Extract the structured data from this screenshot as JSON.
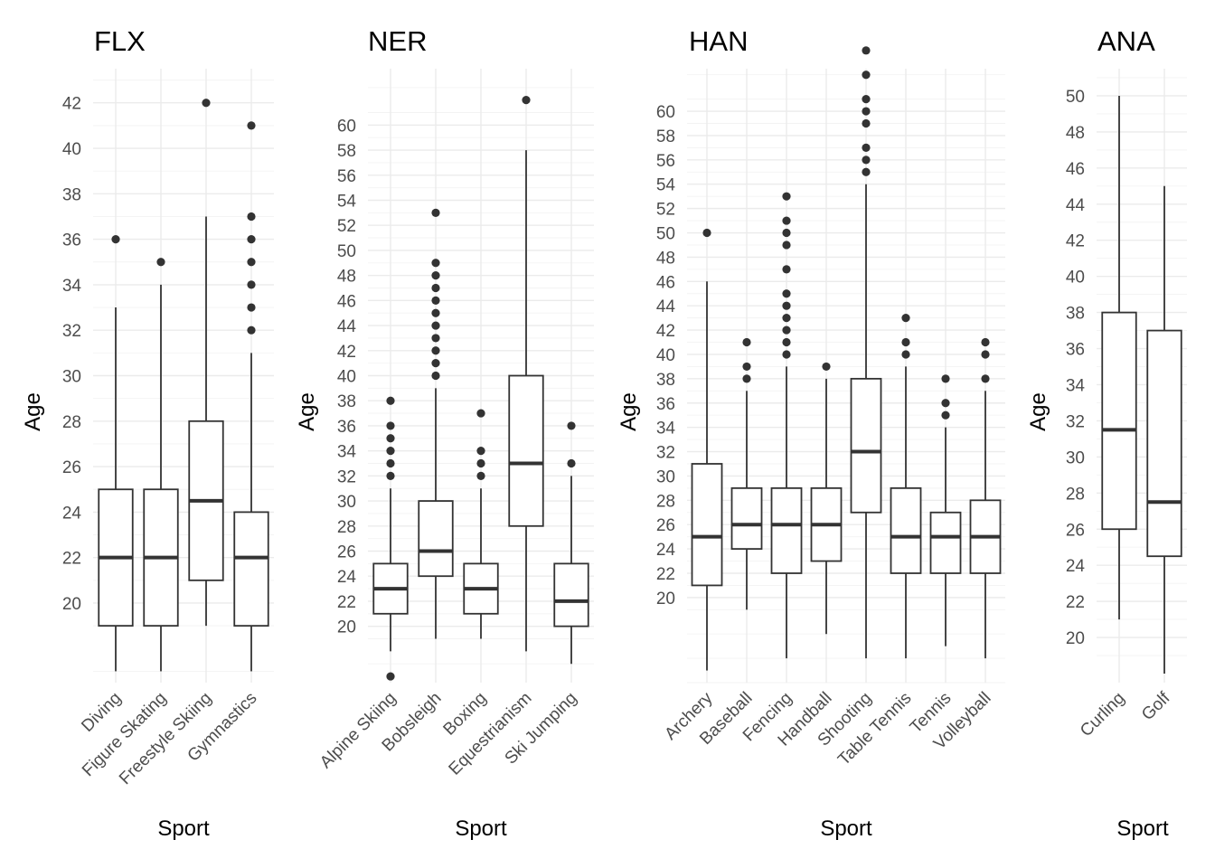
{
  "chart_data": [
    {
      "type": "box",
      "title": "FLX",
      "xlabel": "Sport",
      "ylabel": "Age",
      "ylim": [
        16.5,
        43.5
      ],
      "yticks": [
        20,
        22,
        24,
        26,
        28,
        30,
        32,
        34,
        36,
        38,
        40,
        42
      ],
      "categories": [
        "Diving",
        "Figure Skating",
        "Freestyle Skiing",
        "Gymnastics"
      ],
      "boxes": [
        {
          "min": 17,
          "q1": 19,
          "median": 22,
          "q3": 25,
          "max": 33,
          "outliers": [
            36
          ]
        },
        {
          "min": 17,
          "q1": 19,
          "median": 22,
          "q3": 25,
          "max": 34,
          "outliers": [
            35
          ]
        },
        {
          "min": 19,
          "q1": 21,
          "median": 24.5,
          "q3": 28,
          "max": 37,
          "outliers": [
            42
          ]
        },
        {
          "min": 17,
          "q1": 19,
          "median": 22,
          "q3": 24,
          "max": 31,
          "outliers": [
            32,
            33,
            34,
            35,
            36,
            37,
            41
          ]
        }
      ]
    },
    {
      "type": "box",
      "title": "NER",
      "xlabel": "Sport",
      "ylabel": "Age",
      "ylim": [
        15.5,
        64.5
      ],
      "yticks": [
        20,
        22,
        24,
        26,
        28,
        30,
        32,
        34,
        36,
        38,
        40,
        42,
        44,
        46,
        48,
        50,
        52,
        54,
        56,
        58,
        60
      ],
      "categories": [
        "Alpine Skiing",
        "Bobsleigh",
        "Boxing",
        "Equestrianism",
        "Ski Jumping"
      ],
      "boxes": [
        {
          "min": 18,
          "q1": 21,
          "median": 23,
          "q3": 25,
          "max": 31,
          "outliers": [
            16,
            32,
            33,
            34,
            35,
            36,
            38
          ]
        },
        {
          "min": 19,
          "q1": 24,
          "median": 26,
          "q3": 30,
          "max": 39,
          "outliers": [
            40,
            41,
            42,
            43,
            44,
            45,
            46,
            47,
            48,
            49,
            53
          ]
        },
        {
          "min": 19,
          "q1": 21,
          "median": 23,
          "q3": 25,
          "max": 31,
          "outliers": [
            32,
            33,
            34,
            37
          ]
        },
        {
          "min": 18,
          "q1": 28,
          "median": 33,
          "q3": 40,
          "max": 58,
          "outliers": [
            62
          ]
        },
        {
          "min": 17,
          "q1": 20,
          "median": 22,
          "q3": 25,
          "max": 32,
          "outliers": [
            33,
            36
          ]
        }
      ]
    },
    {
      "type": "box",
      "title": "HAN",
      "xlabel": "Sport",
      "ylabel": "Age",
      "ylim": [
        13,
        63.5
      ],
      "yticks": [
        20,
        22,
        24,
        26,
        28,
        30,
        32,
        34,
        36,
        38,
        40,
        42,
        44,
        46,
        48,
        50,
        52,
        54,
        56,
        58,
        60
      ],
      "categories": [
        "Archery",
        "Baseball",
        "Fencing",
        "Handball",
        "Shooting",
        "Table Tennis",
        "Tennis",
        "Volleyball"
      ],
      "boxes": [
        {
          "min": 14,
          "q1": 21,
          "median": 25,
          "q3": 31,
          "max": 46,
          "outliers": [
            50
          ]
        },
        {
          "min": 19,
          "q1": 24,
          "median": 26,
          "q3": 29,
          "max": 37,
          "outliers": [
            38,
            39,
            41
          ]
        },
        {
          "min": 15,
          "q1": 22,
          "median": 26,
          "q3": 29,
          "max": 39,
          "outliers": [
            40,
            41,
            42,
            43,
            44,
            45,
            47,
            49,
            50,
            51,
            53
          ]
        },
        {
          "min": 17,
          "q1": 23,
          "median": 26,
          "q3": 29,
          "max": 38,
          "outliers": [
            39
          ]
        },
        {
          "min": 15,
          "q1": 27,
          "median": 32,
          "q3": 38,
          "max": 54,
          "outliers": [
            55,
            56,
            57,
            59,
            60,
            61,
            63,
            65
          ]
        },
        {
          "min": 15,
          "q1": 22,
          "median": 25,
          "q3": 29,
          "max": 39,
          "outliers": [
            40,
            41,
            43
          ]
        },
        {
          "min": 16,
          "q1": 22,
          "median": 25,
          "q3": 27,
          "max": 34,
          "outliers": [
            35,
            36,
            38
          ]
        },
        {
          "min": 15,
          "q1": 22,
          "median": 25,
          "q3": 28,
          "max": 37,
          "outliers": [
            38,
            40,
            41
          ]
        }
      ]
    },
    {
      "type": "box",
      "title": "ANA",
      "xlabel": "Sport",
      "ylabel": "Age",
      "ylim": [
        17.5,
        51.5
      ],
      "yticks": [
        20,
        22,
        24,
        26,
        28,
        30,
        32,
        34,
        36,
        38,
        40,
        42,
        44,
        46,
        48,
        50
      ],
      "categories": [
        "Curling",
        "Golf"
      ],
      "boxes": [
        {
          "min": 21,
          "q1": 26,
          "median": 31.5,
          "q3": 38,
          "max": 50,
          "outliers": []
        },
        {
          "min": 18,
          "q1": 24.5,
          "median": 27.5,
          "q3": 37,
          "max": 45,
          "outliers": []
        }
      ]
    }
  ]
}
